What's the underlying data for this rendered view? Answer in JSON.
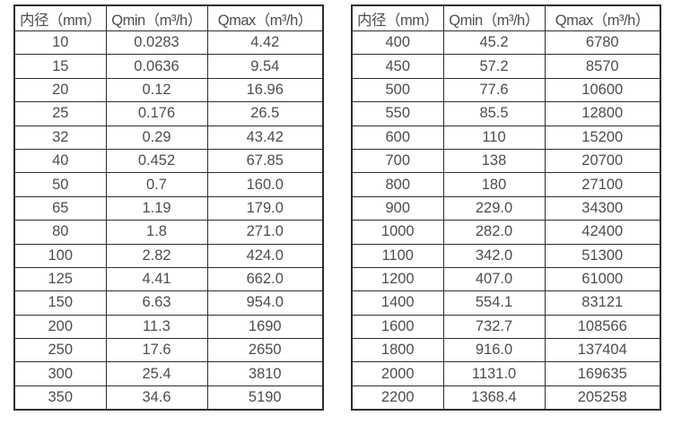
{
  "colors": {
    "background": "#ffffff",
    "border": "#2e2e2e",
    "text": "#4d4d4d"
  },
  "chart_data": [
    {
      "type": "table",
      "title": "",
      "columns": [
        "内径（mm）",
        "Qmin（m³/h）",
        "Qmax（m³/h）"
      ],
      "rows": [
        [
          "10",
          "0.0283",
          "4.42"
        ],
        [
          "15",
          "0.0636",
          "9.54"
        ],
        [
          "20",
          "0.12",
          "16.96"
        ],
        [
          "25",
          "0.176",
          "26.5"
        ],
        [
          "32",
          "0.29",
          "43.42"
        ],
        [
          "40",
          "0.452",
          "67.85"
        ],
        [
          "50",
          "0.7",
          "160.0"
        ],
        [
          "65",
          "1.19",
          "179.0"
        ],
        [
          "80",
          "1.8",
          "271.0"
        ],
        [
          "100",
          "2.82",
          "424.0"
        ],
        [
          "125",
          "4.41",
          "662.0"
        ],
        [
          "150",
          "6.63",
          "954.0"
        ],
        [
          "200",
          "11.3",
          "1690"
        ],
        [
          "250",
          "17.6",
          "2650"
        ],
        [
          "300",
          "25.4",
          "3810"
        ],
        [
          "350",
          "34.6",
          "5190"
        ]
      ]
    },
    {
      "type": "table",
      "title": "",
      "columns": [
        "内径（mm）",
        "Qmin（m³/h）",
        "Qmax（m³/h）"
      ],
      "rows": [
        [
          "400",
          "45.2",
          "6780"
        ],
        [
          "450",
          "57.2",
          "8570"
        ],
        [
          "500",
          "77.6",
          "10600"
        ],
        [
          "550",
          "85.5",
          "12800"
        ],
        [
          "600",
          "110",
          "15200"
        ],
        [
          "700",
          "138",
          "20700"
        ],
        [
          "800",
          "180",
          "27100"
        ],
        [
          "900",
          "229.0",
          "34300"
        ],
        [
          "1000",
          "282.0",
          "42400"
        ],
        [
          "1100",
          "342.0",
          "51300"
        ],
        [
          "1200",
          "407.0",
          "61000"
        ],
        [
          "1400",
          "554.1",
          "83121"
        ],
        [
          "1600",
          "732.7",
          "108566"
        ],
        [
          "1800",
          "916.0",
          "137404"
        ],
        [
          "2000",
          "1131.0",
          "169635"
        ],
        [
          "2200",
          "1368.4",
          "205258"
        ]
      ]
    }
  ]
}
